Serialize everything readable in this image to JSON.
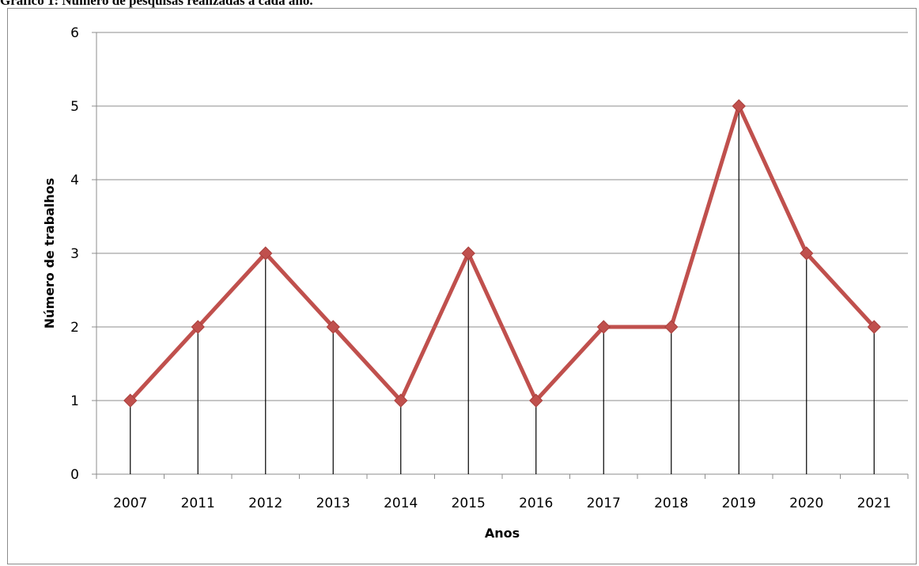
{
  "caption": "Gráfico 1: Número de pesquisas realizadas a cada ano.",
  "chart_data": {
    "type": "line",
    "title": "",
    "xlabel": "Anos",
    "ylabel": "Número de trabalhos",
    "categories": [
      "2007",
      "2011",
      "2012",
      "2013",
      "2014",
      "2015",
      "2016",
      "2017",
      "2018",
      "2019",
      "2020",
      "2021"
    ],
    "series": [
      {
        "values": [
          1,
          2,
          3,
          2,
          1,
          3,
          1,
          2,
          2,
          5,
          3,
          2
        ]
      }
    ],
    "ylim": [
      0,
      6
    ],
    "yticks": [
      0,
      1,
      2,
      3,
      4,
      5,
      6
    ],
    "grid": "horizontal",
    "drop_lines": true,
    "marker": "diamond",
    "line_color": "#c0504d",
    "legend": "none"
  }
}
